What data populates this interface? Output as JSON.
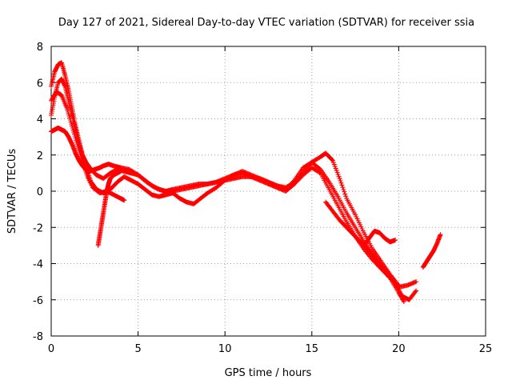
{
  "chart_data": {
    "type": "scatter",
    "title": "Day 127 of 2021, Sidereal Day-to-day VTEC variation (SDTVAR) for receiver ssia",
    "xlabel": "GPS time / hours",
    "ylabel": "SDTVAR / TECUs",
    "xlim": [
      0,
      25
    ],
    "ylim": [
      -8,
      8
    ],
    "x_ticks": [
      "0",
      "5",
      "10",
      "15",
      "20",
      "25"
    ],
    "y_ticks": [
      "8",
      "6",
      "4",
      "2",
      "0",
      "-2",
      "-4",
      "-6",
      "-8"
    ],
    "grid": true,
    "legend": "none",
    "marker": "plus",
    "color": "#ff0000",
    "series": [
      {
        "name": "track-1",
        "x": [
          0.0,
          0.2,
          0.4,
          0.6,
          0.8,
          1.0,
          1.2,
          1.4,
          1.6,
          1.8,
          2.0,
          2.2,
          2.5,
          2.8,
          3.0,
          3.3,
          3.6,
          4.0,
          4.5,
          5.0,
          5.5,
          6.0,
          6.5,
          7.0,
          7.5,
          8.0,
          8.5,
          9.0,
          9.5,
          10.0,
          10.5,
          11.0,
          11.5,
          12.0,
          12.5,
          13.0,
          13.5,
          14.0,
          14.5,
          15.0,
          15.5,
          16.0,
          16.5,
          17.0,
          17.5,
          18.0,
          18.5,
          19.0,
          19.5,
          20.0,
          20.5,
          21.0
        ],
        "y": [
          3.3,
          3.4,
          3.5,
          3.4,
          3.3,
          3.0,
          2.6,
          2.1,
          1.7,
          1.4,
          1.2,
          1.1,
          1.2,
          1.3,
          1.4,
          1.5,
          1.4,
          1.3,
          1.2,
          0.9,
          0.5,
          0.2,
          0.0,
          0.0,
          0.1,
          0.2,
          0.3,
          0.4,
          0.5,
          0.6,
          0.7,
          0.8,
          0.8,
          0.7,
          0.5,
          0.3,
          0.2,
          0.5,
          1.0,
          1.6,
          1.2,
          0.5,
          -0.3,
          -1.2,
          -2.0,
          -2.8,
          -3.5,
          -4.2,
          -4.8,
          -5.3,
          -5.2,
          -5.0
        ]
      },
      {
        "name": "track-2",
        "x": [
          0.0,
          0.2,
          0.4,
          0.6,
          0.8,
          1.0,
          1.2,
          1.4,
          1.6,
          1.8,
          2.0,
          2.3,
          2.6,
          3.0,
          3.4,
          3.8,
          4.2,
          4.6,
          5.0,
          5.4,
          5.8,
          6.2,
          6.6,
          7.0,
          7.4,
          7.8,
          8.2,
          8.6,
          9.0,
          9.5,
          10.0,
          10.5,
          11.0,
          11.5,
          12.0,
          12.5,
          13.0,
          13.5,
          14.0,
          14.5,
          15.0,
          15.5,
          15.8,
          16.2,
          16.6,
          17.0,
          17.5,
          18.0,
          18.5,
          19.0,
          19.5,
          20.0
        ],
        "y": [
          5.8,
          6.6,
          7.0,
          7.1,
          6.4,
          5.6,
          4.6,
          3.6,
          2.8,
          2.0,
          1.3,
          0.5,
          0.1,
          -0.1,
          0.1,
          0.5,
          0.8,
          0.6,
          0.4,
          0.1,
          -0.2,
          -0.3,
          -0.2,
          -0.1,
          -0.4,
          -0.6,
          -0.7,
          -0.4,
          -0.1,
          0.2,
          0.6,
          0.9,
          1.1,
          0.9,
          0.7,
          0.5,
          0.3,
          0.1,
          0.6,
          1.3,
          1.6,
          1.9,
          2.1,
          1.7,
          0.7,
          -0.4,
          -1.3,
          -2.3,
          -3.2,
          -3.9,
          -4.6,
          -5.2
        ]
      },
      {
        "name": "track-3",
        "x": [
          0.0,
          0.2,
          0.4,
          0.6,
          0.8,
          1.0,
          1.2,
          1.4,
          1.6,
          1.8,
          2.0,
          2.3,
          2.6,
          3.0,
          3.4,
          3.8,
          4.2,
          4.6,
          5.0,
          5.4,
          5.8,
          6.2,
          6.6,
          7.0,
          7.5,
          8.0,
          8.5,
          9.0,
          9.5,
          10.0,
          10.5,
          11.0,
          11.5,
          12.0,
          12.5,
          13.0,
          13.5,
          14.0,
          14.5,
          15.0,
          15.5,
          16.0,
          16.5,
          17.0,
          17.5,
          18.0,
          18.5,
          19.0,
          19.5,
          20.0,
          20.3
        ],
        "y": [
          4.2,
          5.2,
          6.0,
          6.2,
          5.8,
          5.0,
          4.2,
          3.4,
          2.6,
          2.0,
          1.6,
          1.2,
          0.9,
          0.7,
          1.0,
          1.2,
          1.1,
          1.0,
          0.9,
          0.6,
          0.3,
          0.1,
          0.0,
          0.1,
          0.2,
          0.3,
          0.4,
          0.4,
          0.5,
          0.7,
          0.9,
          1.0,
          0.8,
          0.6,
          0.4,
          0.2,
          0.0,
          0.4,
          0.9,
          1.3,
          1.0,
          0.1,
          -0.8,
          -1.7,
          -2.5,
          -3.2,
          -3.8,
          -4.3,
          -4.8,
          -5.6,
          -6.1
        ]
      },
      {
        "name": "track-4",
        "x": [
          0.0,
          0.3,
          0.6,
          0.9,
          1.2,
          1.5,
          1.8,
          2.1,
          2.4,
          2.8,
          3.2,
          3.6,
          4.0,
          4.2
        ],
        "y": [
          5.0,
          5.5,
          5.3,
          4.6,
          3.6,
          2.6,
          1.6,
          0.8,
          0.2,
          -0.1,
          0.0,
          -0.2,
          -0.4,
          -0.5
        ]
      },
      {
        "name": "track-5",
        "x": [
          2.7,
          2.8,
          2.9,
          3.0,
          3.1,
          3.2,
          3.3,
          3.4,
          3.6,
          3.8,
          4.0
        ],
        "y": [
          -3.0,
          -2.4,
          -1.8,
          -1.2,
          -0.6,
          0.0,
          0.4,
          0.7,
          0.9,
          1.0,
          1.1
        ]
      },
      {
        "name": "track-6",
        "x": [
          15.8,
          16.2,
          16.6,
          17.0,
          17.4,
          17.8,
          18.2,
          18.6,
          19.0,
          19.4,
          19.8,
          20.2,
          20.6,
          21.0
        ],
        "y": [
          -0.6,
          -1.1,
          -1.6,
          -2.0,
          -2.4,
          -2.8,
          -3.2,
          -3.7,
          -4.1,
          -4.6,
          -5.1,
          -5.8,
          -6.0,
          -5.5
        ]
      },
      {
        "name": "track-7",
        "x": [
          18.0,
          18.3,
          18.6,
          18.9,
          19.2,
          19.5,
          19.8
        ],
        "y": [
          -3.0,
          -2.6,
          -2.2,
          -2.3,
          -2.6,
          -2.8,
          -2.7
        ]
      },
      {
        "name": "track-8",
        "x": [
          21.4,
          21.6,
          21.8,
          22.0,
          22.2,
          22.4
        ],
        "y": [
          -4.2,
          -3.9,
          -3.6,
          -3.3,
          -2.9,
          -2.4
        ]
      }
    ]
  }
}
